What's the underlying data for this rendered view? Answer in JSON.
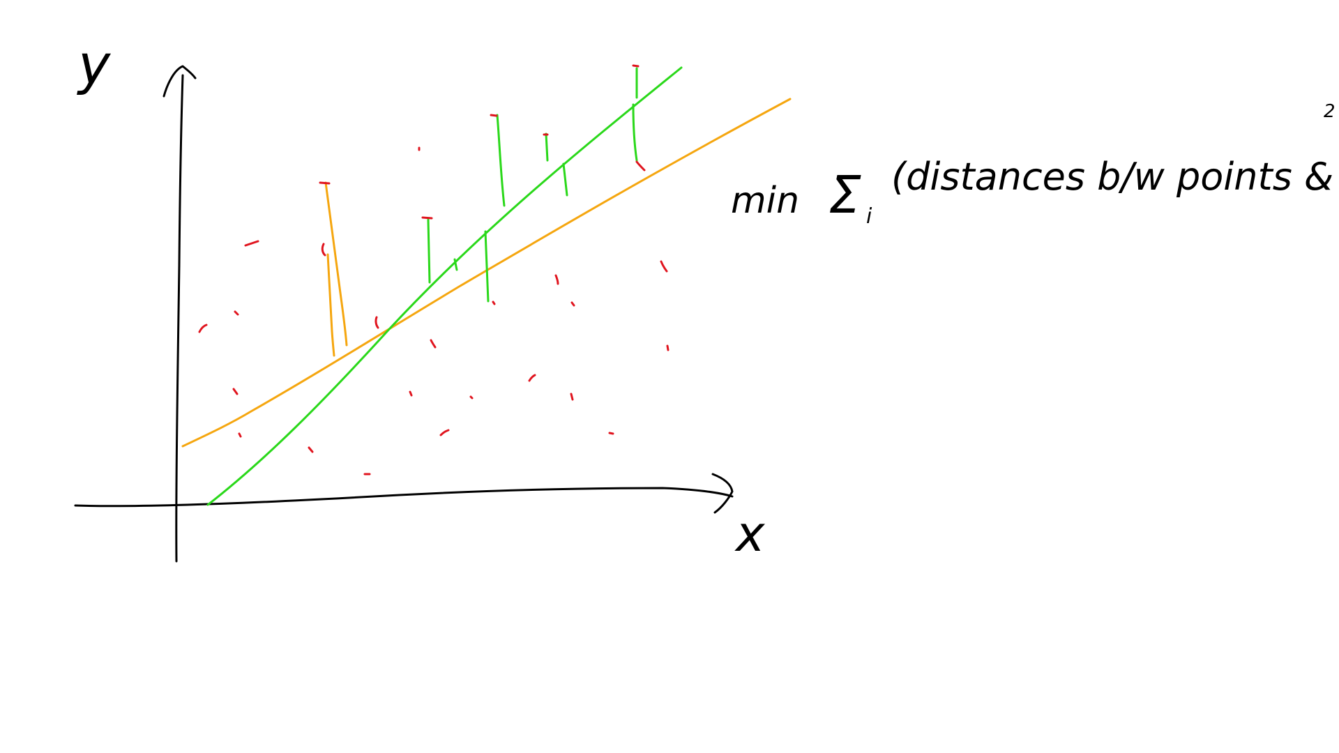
{
  "labels": {
    "y_axis": "y",
    "x_axis": "x",
    "formula_min": "min",
    "formula_sum": "Σ",
    "formula_sub": "i",
    "formula_body": "(distances b/w points & line)",
    "formula_exp": "2"
  },
  "colors": {
    "ink": "#000000",
    "points": "#e0141e",
    "line_a": "#f5a60f",
    "line_b": "#2ad81a",
    "background": "#ffffff"
  }
}
